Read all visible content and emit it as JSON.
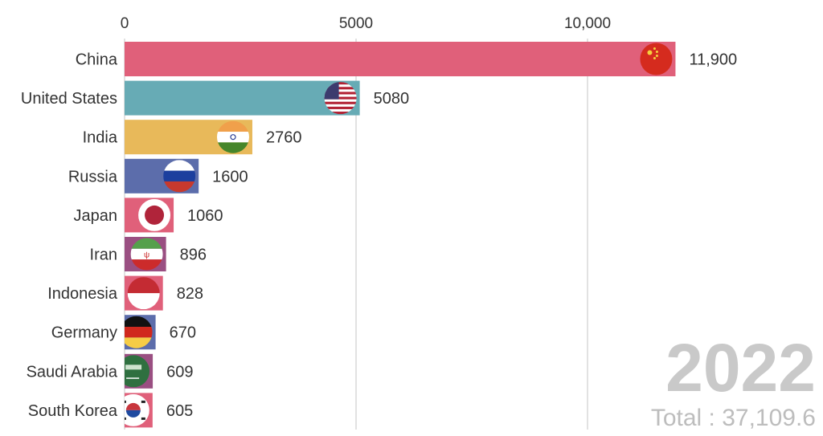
{
  "chart_data": {
    "type": "bar",
    "orientation": "horizontal",
    "title": "",
    "xlim": [
      0,
      11900
    ],
    "x_ticks": [
      {
        "value": 0,
        "label": "0"
      },
      {
        "value": 5000,
        "label": "5000"
      },
      {
        "value": 10000,
        "label": "10,000"
      }
    ],
    "grid": true,
    "year": "2022",
    "total_label": "Total : 37,109.6",
    "bars": [
      {
        "category": "China",
        "value": 11900,
        "label": "11,900",
        "color": "#e0607a",
        "flag": "china-flag"
      },
      {
        "category": "United States",
        "value": 5080,
        "label": "5080",
        "color": "#67abb5",
        "flag": "us-flag"
      },
      {
        "category": "India",
        "value": 2760,
        "label": "2760",
        "color": "#e8b95a",
        "flag": "india-flag"
      },
      {
        "category": "Russia",
        "value": 1600,
        "label": "1600",
        "color": "#5c6dab",
        "flag": "russia-flag"
      },
      {
        "category": "Japan",
        "value": 1060,
        "label": "1060",
        "color": "#e0607a",
        "flag": "japan-flag"
      },
      {
        "category": "Iran",
        "value": 896,
        "label": "896",
        "color": "#9a4f82",
        "flag": "iran-flag"
      },
      {
        "category": "Indonesia",
        "value": 828,
        "label": "828",
        "color": "#e0607a",
        "flag": "indonesia-flag"
      },
      {
        "category": "Germany",
        "value": 670,
        "label": "670",
        "color": "#5c6dab",
        "flag": "germany-flag"
      },
      {
        "category": "Saudi Arabia",
        "value": 609,
        "label": "609",
        "color": "#9a4f82",
        "flag": "saudi-arabia-flag"
      },
      {
        "category": "South Korea",
        "value": 605,
        "label": "605",
        "color": "#e0607a",
        "flag": "south-korea-flag"
      }
    ]
  }
}
